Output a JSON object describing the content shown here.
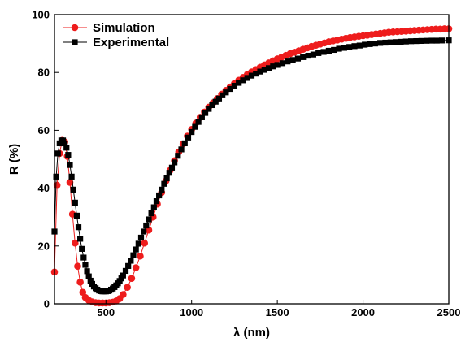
{
  "chart_data": {
    "type": "scatter",
    "xlabel": "λ (nm)",
    "ylabel": "R (%)",
    "xlim": [
      200,
      2500
    ],
    "ylim": [
      0,
      100
    ],
    "x_ticks": [
      500,
      1000,
      1500,
      2000,
      2500
    ],
    "y_ticks": [
      0,
      20,
      40,
      60,
      80,
      100
    ],
    "x_tick_labels": [
      "500",
      "1000",
      "1500",
      "2000",
      "2500"
    ],
    "y_tick_labels": [
      "0",
      "20",
      "40",
      "60",
      "80",
      "100"
    ],
    "grid": false,
    "legend_position": "top-left",
    "series": [
      {
        "name": "Simulation",
        "color": "#ee1c1c",
        "marker": "circle",
        "x": [
          200,
          215,
          230,
          245,
          260,
          275,
          290,
          305,
          320,
          335,
          350,
          365,
          380,
          400,
          420,
          440,
          460,
          480,
          500,
          520,
          540,
          560,
          580,
          600,
          625,
          650,
          675,
          700,
          725,
          750,
          775,
          800,
          825,
          850,
          875,
          900,
          925,
          950,
          975,
          1000,
          1025,
          1050,
          1075,
          1100,
          1125,
          1150,
          1175,
          1200,
          1225,
          1250,
          1275,
          1300,
          1325,
          1350,
          1375,
          1400,
          1425,
          1450,
          1475,
          1500,
          1525,
          1550,
          1575,
          1600,
          1625,
          1650,
          1675,
          1700,
          1725,
          1750,
          1775,
          1800,
          1825,
          1850,
          1875,
          1900,
          1925,
          1950,
          1975,
          2000,
          2025,
          2050,
          2075,
          2100,
          2125,
          2150,
          2175,
          2200,
          2225,
          2250,
          2275,
          2300,
          2325,
          2350,
          2375,
          2400,
          2425,
          2450,
          2475,
          2500
        ],
        "y": [
          11,
          41,
          52,
          56.5,
          56,
          51,
          42,
          31,
          21,
          13,
          7.5,
          4,
          2.2,
          1.2,
          0.7,
          0.4,
          0.3,
          0.3,
          0.3,
          0.4,
          0.6,
          1,
          1.8,
          3.2,
          5.7,
          8.8,
          12.5,
          16.5,
          21,
          25.5,
          30,
          34.5,
          38.5,
          42.5,
          46.2,
          49.5,
          52.5,
          55.3,
          58,
          60.3,
          62.5,
          64.5,
          66.3,
          68,
          69.5,
          71,
          72.5,
          73.8,
          75,
          76.2,
          77.3,
          78.3,
          79.3,
          80.2,
          81,
          81.8,
          82.6,
          83.3,
          84,
          84.7,
          85.3,
          85.9,
          86.5,
          87,
          87.5,
          88,
          88.5,
          89,
          89.4,
          89.8,
          90.2,
          90.6,
          90.9,
          91.2,
          91.5,
          91.8,
          92.1,
          92.3,
          92.5,
          92.7,
          92.9,
          93.1,
          93.3,
          93.5,
          93.7,
          93.9,
          94,
          94.1,
          94.2,
          94.3,
          94.4,
          94.5,
          94.6,
          94.7,
          94.8,
          94.9,
          95,
          95,
          95.1,
          95.1
        ]
      },
      {
        "name": "Experimental",
        "color": "#000000",
        "marker": "square",
        "x": [
          200,
          210,
          220,
          230,
          240,
          250,
          260,
          270,
          280,
          290,
          300,
          310,
          320,
          330,
          340,
          350,
          360,
          370,
          380,
          390,
          400,
          410,
          420,
          430,
          440,
          450,
          460,
          470,
          480,
          490,
          500,
          510,
          520,
          530,
          540,
          550,
          560,
          570,
          580,
          590,
          600,
          615,
          630,
          645,
          660,
          675,
          690,
          705,
          720,
          735,
          750,
          765,
          780,
          795,
          810,
          825,
          840,
          855,
          870,
          885,
          900,
          920,
          940,
          960,
          980,
          1000,
          1020,
          1040,
          1060,
          1080,
          1100,
          1120,
          1140,
          1160,
          1180,
          1200,
          1225,
          1250,
          1275,
          1300,
          1325,
          1350,
          1375,
          1400,
          1425,
          1450,
          1475,
          1500,
          1530,
          1560,
          1590,
          1620,
          1650,
          1680,
          1710,
          1740,
          1770,
          1800,
          1830,
          1860,
          1890,
          1920,
          1950,
          1980,
          2010,
          2040,
          2070,
          2100,
          2130,
          2160,
          2190,
          2220,
          2250,
          2280,
          2310,
          2340,
          2370,
          2400,
          2430,
          2460,
          2500
        ],
        "y": [
          25,
          44,
          52,
          55.5,
          56.5,
          56.5,
          55.5,
          54,
          51.5,
          48,
          44,
          39.5,
          35,
          30.5,
          26.5,
          22.5,
          19,
          16,
          13.5,
          11.3,
          9.5,
          8,
          6.9,
          6,
          5.4,
          4.9,
          4.6,
          4.4,
          4.3,
          4.3,
          4.3,
          4.4,
          4.6,
          4.9,
          5.3,
          5.8,
          6.4,
          7.1,
          7.9,
          8.8,
          9.8,
          11.4,
          13.1,
          14.9,
          16.8,
          18.8,
          20.8,
          22.9,
          25,
          27.1,
          29.2,
          31.3,
          33.4,
          35.5,
          37.5,
          39.5,
          41.5,
          43.4,
          45.3,
          47.1,
          48.9,
          51.2,
          53.4,
          55.5,
          57.5,
          59.4,
          61.2,
          62.9,
          64.5,
          66,
          67.4,
          68.7,
          69.9,
          71,
          72.1,
          73.1,
          74.3,
          75.4,
          76.4,
          77.3,
          78.1,
          78.9,
          79.6,
          80.3,
          80.9,
          81.5,
          82.1,
          82.6,
          83.2,
          83.8,
          84.3,
          84.8,
          85.3,
          85.8,
          86.2,
          86.7,
          87.1,
          87.5,
          87.8,
          88.2,
          88.5,
          88.8,
          89.1,
          89.3,
          89.6,
          89.8,
          90,
          90.2,
          90.3,
          90.4,
          90.5,
          90.6,
          90.7,
          90.8,
          90.85,
          90.9,
          90.95,
          91,
          91,
          91.05,
          91.1
        ]
      }
    ]
  }
}
